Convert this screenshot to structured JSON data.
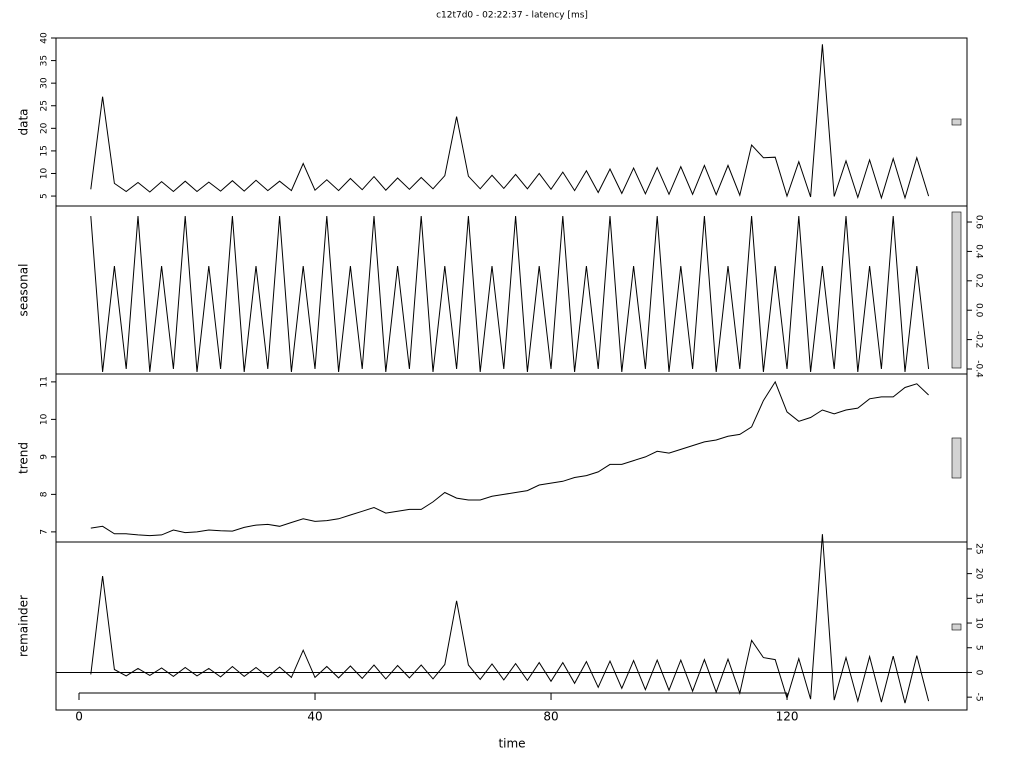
{
  "chart_data": [
    {
      "type": "line",
      "title": "c12t7d0 - 02:22:37 - latency [ms]",
      "ylabel": "data",
      "y_axis_side": "left",
      "color": "#000000",
      "xlim": [
        -3.9,
        150.5
      ],
      "ylim": [
        2.8,
        40
      ],
      "yticks": [
        5,
        10,
        15,
        20,
        25,
        30,
        35,
        40
      ],
      "x": [
        2,
        4,
        6,
        8,
        10,
        12,
        14,
        16,
        18,
        20,
        22,
        24,
        26,
        28,
        30,
        32,
        34,
        36,
        38,
        40,
        42,
        44,
        46,
        48,
        50,
        52,
        54,
        56,
        58,
        60,
        62,
        64,
        66,
        68,
        70,
        72,
        74,
        76,
        78,
        80,
        82,
        84,
        86,
        88,
        90,
        92,
        94,
        96,
        98,
        100,
        102,
        104,
        106,
        108,
        110,
        112,
        114,
        116,
        118,
        120,
        122,
        124,
        126,
        128,
        130,
        132,
        134,
        136,
        138,
        140,
        142,
        144
      ],
      "values": [
        6.5,
        27,
        7.8,
        6.0,
        8.0,
        5.9,
        8.2,
        6.0,
        8.3,
        6.0,
        8.1,
        6.1,
        8.4,
        6.1,
        8.5,
        6.2,
        8.3,
        6.2,
        12.2,
        6.3,
        8.6,
        6.2,
        8.9,
        6.4,
        9.3,
        6.3,
        9.0,
        6.5,
        9.1,
        6.6,
        9.5,
        22.6,
        9.4,
        6.6,
        9.6,
        6.7,
        9.8,
        6.6,
        10.0,
        6.5,
        10.3,
        6.2,
        10.6,
        5.8,
        11.0,
        5.6,
        11.2,
        5.5,
        11.3,
        5.4,
        11.5,
        5.4,
        11.8,
        5.3,
        11.8,
        5.2,
        16.3,
        13.5,
        13.6,
        5.0,
        12.6,
        4.8,
        38.6,
        4.9,
        12.8,
        4.7,
        13.0,
        4.6,
        13.3,
        4.6,
        13.5,
        5.0
      ]
    },
    {
      "type": "line",
      "ylabel": "seasonal",
      "y_axis_side": "right",
      "color": "#000000",
      "xlim": [
        -3.9,
        150.5
      ],
      "ylim": [
        -0.434,
        0.709
      ],
      "yticks": [
        -0.4,
        -0.2,
        {
          "value": 0,
          "label": "0.0"
        },
        0.2,
        0.4,
        0.6
      ],
      "x": [
        2,
        4,
        6,
        8,
        10,
        12,
        14,
        16,
        18,
        20,
        22,
        24,
        26,
        28,
        30,
        32,
        34,
        36,
        38,
        40,
        42,
        44,
        46,
        48,
        50,
        52,
        54,
        56,
        58,
        60,
        62,
        64,
        66,
        68,
        70,
        72,
        74,
        76,
        78,
        80,
        82,
        84,
        86,
        88,
        90,
        92,
        94,
        96,
        98,
        100,
        102,
        104,
        106,
        108,
        110,
        112,
        114,
        116,
        118,
        120,
        122,
        124,
        126,
        128,
        130,
        132,
        134,
        136,
        138,
        140,
        142,
        144
      ],
      "values": [
        0.64,
        -0.42,
        0.3,
        -0.4,
        0.64,
        -0.42,
        0.3,
        -0.4,
        0.64,
        -0.42,
        0.3,
        -0.4,
        0.64,
        -0.42,
        0.3,
        -0.4,
        0.64,
        -0.42,
        0.3,
        -0.4,
        0.64,
        -0.42,
        0.3,
        -0.4,
        0.64,
        -0.42,
        0.3,
        -0.4,
        0.64,
        -0.42,
        0.3,
        -0.4,
        0.64,
        -0.42,
        0.3,
        -0.4,
        0.64,
        -0.42,
        0.3,
        -0.4,
        0.64,
        -0.42,
        0.3,
        -0.4,
        0.64,
        -0.42,
        0.3,
        -0.4,
        0.64,
        -0.42,
        0.3,
        -0.4,
        0.64,
        -0.42,
        0.3,
        -0.4,
        0.64,
        -0.42,
        0.3,
        -0.4,
        0.64,
        -0.42,
        0.3,
        -0.4,
        0.64,
        -0.42,
        0.3,
        -0.4,
        0.64,
        -0.42,
        0.3,
        -0.4
      ]
    },
    {
      "type": "line",
      "ylabel": "trend",
      "y_axis_side": "left",
      "color": "#000000",
      "xlim": [
        -3.9,
        150.5
      ],
      "ylim": [
        6.73,
        11.21
      ],
      "yticks": [
        7,
        8,
        9,
        10,
        11
      ],
      "x": [
        2,
        4,
        6,
        8,
        10,
        12,
        14,
        16,
        18,
        20,
        22,
        24,
        26,
        28,
        30,
        32,
        34,
        36,
        38,
        40,
        42,
        44,
        46,
        48,
        50,
        52,
        54,
        56,
        58,
        60,
        62,
        64,
        66,
        68,
        70,
        72,
        74,
        76,
        78,
        80,
        82,
        84,
        86,
        88,
        90,
        92,
        94,
        96,
        98,
        100,
        102,
        104,
        106,
        108,
        110,
        112,
        114,
        116,
        118,
        120,
        122,
        124,
        126,
        128,
        130,
        132,
        134,
        136,
        138,
        140,
        142,
        144
      ],
      "values": [
        7.1,
        7.15,
        6.95,
        6.95,
        6.92,
        6.9,
        6.92,
        7.05,
        6.98,
        7.0,
        7.05,
        7.03,
        7.02,
        7.12,
        7.18,
        7.2,
        7.15,
        7.25,
        7.35,
        7.28,
        7.3,
        7.35,
        7.45,
        7.55,
        7.65,
        7.5,
        7.55,
        7.6,
        7.6,
        7.8,
        8.05,
        7.9,
        7.85,
        7.85,
        7.95,
        8.0,
        8.05,
        8.1,
        8.25,
        8.3,
        8.35,
        8.45,
        8.5,
        8.6,
        8.8,
        8.8,
        8.9,
        9.0,
        9.15,
        9.1,
        9.2,
        9.3,
        9.4,
        9.45,
        9.55,
        9.6,
        9.8,
        10.5,
        11.0,
        10.2,
        9.95,
        10.05,
        10.25,
        10.15,
        10.25,
        10.3,
        10.55,
        10.6,
        10.6,
        10.85,
        10.95,
        10.65
      ]
    },
    {
      "type": "line",
      "ylabel": "remainder",
      "y_axis_side": "right",
      "color": "#000000",
      "xlabel": "time",
      "hline": 0,
      "xlim": [
        -3.9,
        150.5
      ],
      "ylim": [
        -7.6,
        26.4
      ],
      "yticks": [
        -5,
        0,
        5,
        10,
        15,
        20,
        25
      ],
      "xticks": [
        0,
        40,
        80,
        120
      ],
      "x": [
        2,
        4,
        6,
        8,
        10,
        12,
        14,
        16,
        18,
        20,
        22,
        24,
        26,
        28,
        30,
        32,
        34,
        36,
        38,
        40,
        42,
        44,
        46,
        48,
        50,
        52,
        54,
        56,
        58,
        60,
        62,
        64,
        66,
        68,
        70,
        72,
        74,
        76,
        78,
        80,
        82,
        84,
        86,
        88,
        90,
        92,
        94,
        96,
        98,
        100,
        102,
        104,
        106,
        108,
        110,
        112,
        114,
        116,
        118,
        120,
        122,
        124,
        126,
        128,
        130,
        132,
        134,
        136,
        138,
        140,
        142,
        144
      ],
      "values": [
        -0.4,
        19.5,
        0.6,
        -0.7,
        0.8,
        -0.6,
        0.9,
        -0.8,
        1.0,
        -0.7,
        0.8,
        -0.9,
        1.2,
        -0.8,
        1.0,
        -0.9,
        1.1,
        -1.0,
        4.5,
        -1.0,
        1.2,
        -1.1,
        1.3,
        -1.2,
        1.5,
        -1.3,
        1.4,
        -1.1,
        1.5,
        -1.3,
        1.6,
        14.5,
        1.5,
        -1.4,
        1.7,
        -1.5,
        1.8,
        -1.6,
        2.0,
        -1.8,
        2.0,
        -2.2,
        2.2,
        -3.0,
        2.3,
        -3.2,
        2.4,
        -3.5,
        2.5,
        -3.6,
        2.5,
        -3.8,
        2.6,
        -4.0,
        2.7,
        -4.2,
        6.5,
        3.0,
        2.6,
        -5.2,
        2.8,
        -5.4,
        28,
        -5.6,
        3.0,
        -5.8,
        3.2,
        -6.0,
        3.3,
        -6.2,
        3.4,
        -5.8
      ]
    }
  ]
}
